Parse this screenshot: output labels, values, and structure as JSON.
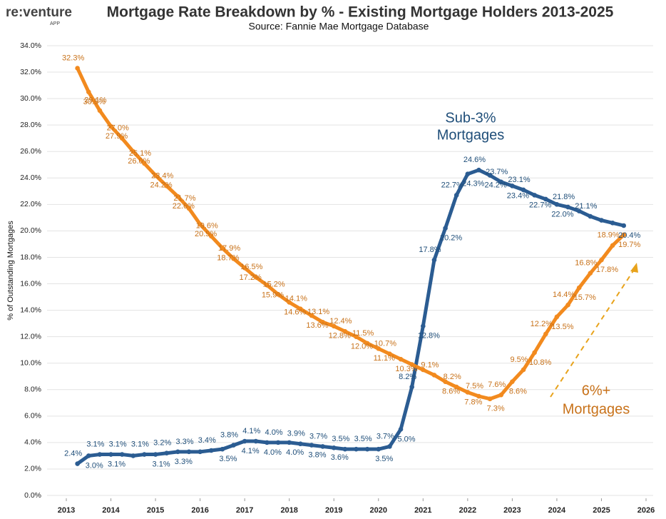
{
  "logo": {
    "text": "re:venture",
    "sub": "APP"
  },
  "chart_data": {
    "type": "line",
    "title": "Mortgage Rate Breakdown by % - Existing Mortgage Holders 2013-2025",
    "subtitle": "Source: Fannie Mae Mortgage Database",
    "y_label": "% of Outstanding Mortgages",
    "x": [
      2013.25,
      2013.5,
      2013.75,
      2014,
      2014.25,
      2014.5,
      2014.75,
      2015,
      2015.25,
      2015.5,
      2015.75,
      2016,
      2016.25,
      2016.5,
      2016.75,
      2017,
      2017.25,
      2017.5,
      2017.75,
      2018,
      2018.25,
      2018.5,
      2018.75,
      2019,
      2019.25,
      2019.5,
      2019.75,
      2020,
      2020.25,
      2020.5,
      2020.75,
      2021,
      2021.25,
      2021.5,
      2021.75,
      2022,
      2022.25,
      2022.5,
      2022.75,
      2023,
      2023.25,
      2023.5,
      2023.75,
      2024,
      2024.25,
      2024.5,
      2024.75,
      2025,
      2025.25,
      2025.5
    ],
    "series": [
      {
        "name": "Sub-3% Mortgages",
        "annotation": [
          "Sub-3%",
          "Mortgages"
        ],
        "color": "#2b5c92",
        "label_color": "#1f4e79",
        "values": [
          2.4,
          3.0,
          3.1,
          3.1,
          3.1,
          3.0,
          3.1,
          3.1,
          3.2,
          3.3,
          3.3,
          3.3,
          3.4,
          3.5,
          3.8,
          4.1,
          4.1,
          4.0,
          4.0,
          4.0,
          3.9,
          3.8,
          3.7,
          3.6,
          3.5,
          3.5,
          3.5,
          3.5,
          3.7,
          5.0,
          8.2,
          12.8,
          17.8,
          20.2,
          22.7,
          24.3,
          24.6,
          24.2,
          23.7,
          23.4,
          23.1,
          22.7,
          22.4,
          22.0,
          21.8,
          21.5,
          21.1,
          20.8,
          20.6,
          20.4
        ],
        "value_labels": [
          "2.4%",
          "3.0%",
          "3.1%",
          "3.1%",
          "3.1%",
          null,
          "3.1%",
          "3.1%",
          "3.2%",
          "3.3%",
          "3.3%",
          null,
          "3.4%",
          "3.5%",
          "3.8%",
          "4.1%",
          "4.1%",
          "4.0%",
          "4.0%",
          "4.0%",
          "3.9%",
          "3.8%",
          "3.7%",
          "3.6%",
          "3.5%",
          null,
          "3.5%",
          "3.5%",
          "3.7%",
          "5.0%",
          "8.2%",
          "12.8%",
          "17.8%",
          "20.2%",
          "22.7%",
          "24.3%",
          "24.6%",
          "24.2%",
          "23.7%",
          "23.4%",
          "23.1%",
          "22.7%",
          null,
          "22.0%",
          "21.8%",
          null,
          "21.1%",
          null,
          null,
          "20.4%"
        ]
      },
      {
        "name": "6%+ Mortgages",
        "annotation": [
          "6%+",
          "Mortgages"
        ],
        "color": "#f28a1e",
        "label_color": "#c8721a",
        "values": [
          32.3,
          30.5,
          29.1,
          27.9,
          27.0,
          26.0,
          25.1,
          24.2,
          23.4,
          22.6,
          21.7,
          20.5,
          19.6,
          18.7,
          17.9,
          17.2,
          16.5,
          15.9,
          15.2,
          14.6,
          14.1,
          13.6,
          13.1,
          12.8,
          12.4,
          12.0,
          11.5,
          11.1,
          10.7,
          10.3,
          9.9,
          9.5,
          9.1,
          8.6,
          8.2,
          7.8,
          7.5,
          7.3,
          7.6,
          8.6,
          9.5,
          10.8,
          12.2,
          13.5,
          14.4,
          15.7,
          16.8,
          17.8,
          18.9,
          19.7
        ],
        "value_labels": [
          "32.3%",
          "30.5%",
          "29.1%",
          "27.9%",
          "27.0%",
          "26.0%",
          "25.1%",
          "24.2%",
          "23.4%",
          "22.6%",
          "21.7%",
          "20.5%",
          "19.6%",
          "18.7%",
          "17.9%",
          "17.2%",
          "16.5%",
          "15.9%",
          "15.2%",
          "14.6%",
          "14.1%",
          "13.6%",
          "13.1%",
          "12.8%",
          "12.4%",
          "12.0%",
          "11.5%",
          "11.1%",
          "10.7%",
          "10.3%",
          null,
          null,
          "9.1%",
          "8.6%",
          "8.2%",
          "7.8%",
          "7.5%",
          "7.3%",
          "7.6%",
          "8.6%",
          "9.5%",
          "10.8%",
          "12.2%",
          "13.5%",
          "14.4%",
          "15.7%",
          "16.8%",
          "17.8%",
          "18.9%",
          "19.7%"
        ]
      }
    ],
    "xlim": [
      2013,
      2026
    ],
    "xticks": [
      2013,
      2014,
      2015,
      2016,
      2017,
      2018,
      2019,
      2020,
      2021,
      2022,
      2023,
      2024,
      2025,
      2026
    ],
    "ylim": [
      0,
      34
    ],
    "yticks": [
      {
        "value": 0,
        "label": "0.0%"
      },
      {
        "value": 2,
        "label": "2.0%"
      },
      {
        "value": 4,
        "label": "4.0%"
      },
      {
        "value": 6,
        "label": "6.0%"
      },
      {
        "value": 8,
        "label": "8.0%"
      },
      {
        "value": 10,
        "label": "10.0%"
      },
      {
        "value": 12,
        "label": "12.0%"
      },
      {
        "value": 14,
        "label": "14.0%"
      },
      {
        "value": 16,
        "label": "16.0%"
      },
      {
        "value": 18,
        "label": "18.0%"
      },
      {
        "value": 20,
        "label": "20.0%"
      },
      {
        "value": 22,
        "label": "22.0%"
      },
      {
        "value": 24,
        "label": "24.0%"
      },
      {
        "value": 26,
        "label": "26.0%"
      },
      {
        "value": 28,
        "label": "28.0%"
      },
      {
        "value": 30,
        "label": "30.0%"
      },
      {
        "value": 32,
        "label": "32.0%"
      },
      {
        "value": 34,
        "label": "34.0%"
      }
    ],
    "grid": true
  }
}
